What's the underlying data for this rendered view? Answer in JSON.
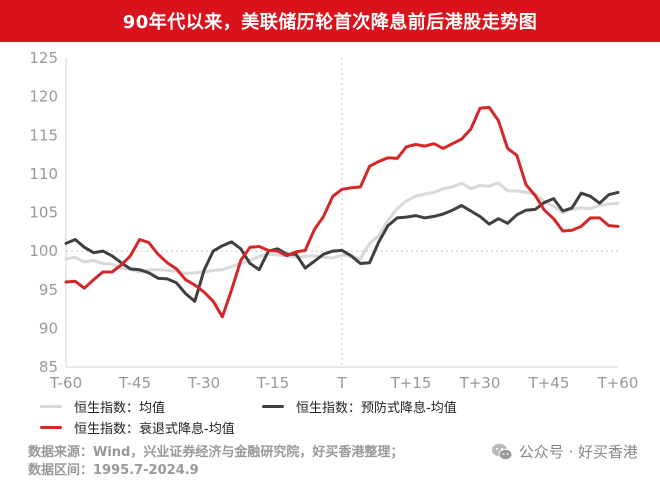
{
  "title": "90年代以来，美联储历轮首次降息前后港股走势图",
  "colors": {
    "light": "#d9d9d9",
    "dark": "#404040",
    "red": "#d62728",
    "accent": "#d9121b"
  },
  "legend": {
    "light_label": "恒生指数：均值",
    "dark_label": "恒生指数：预防式降息-均值",
    "red_label": "恒生指数：衰退式降息-均值"
  },
  "source": {
    "line1": "数据来源：Wind，兴业证券经济与金融研究院，好买香港整理；",
    "line2": "数据区间：1995.7-2024.9"
  },
  "brand": {
    "text": "公众号 · 好买香港",
    "icon": "wechat-icon"
  },
  "chart_data": {
    "type": "line",
    "xlabel": "",
    "ylabel": "",
    "xlim": [
      -60,
      60
    ],
    "ylim": [
      85,
      125
    ],
    "yticks": [
      85,
      90,
      95,
      100,
      105,
      110,
      115,
      120,
      125
    ],
    "xticks": [
      -60,
      -45,
      -30,
      -15,
      0,
      15,
      30,
      45,
      60
    ],
    "xtick_labels": [
      "T-60",
      "T-45",
      "T-30",
      "T-15",
      "T",
      "T+15",
      "T+30",
      "T+45",
      "T+60"
    ],
    "grid": false,
    "reference_lines": {
      "y": 100,
      "x": 0
    },
    "series": [
      {
        "name": "恒生指数：均值",
        "color": "light",
        "x": [
          -60,
          -58,
          -56,
          -54,
          -52,
          -50,
          -48,
          -46,
          -44,
          -42,
          -40,
          -38,
          -36,
          -34,
          -32,
          -30,
          -28,
          -26,
          -24,
          -22,
          -20,
          -18,
          -16,
          -14,
          -12,
          -10,
          -8,
          -6,
          -4,
          -2,
          0,
          2,
          4,
          6,
          8,
          10,
          12,
          14,
          16,
          18,
          20,
          22,
          24,
          26,
          28,
          30,
          32,
          34,
          36,
          38,
          40,
          42,
          44,
          46,
          48,
          50,
          52,
          54,
          56,
          58,
          60
        ],
        "y": [
          99,
          99.2,
          98.6,
          98.8,
          98.4,
          98.3,
          97.8,
          97.6,
          97.3,
          97.6,
          97.6,
          97.5,
          97.4,
          97.1,
          97.2,
          97.3,
          97.5,
          97.6,
          98,
          98.4,
          98.8,
          99.3,
          99.6,
          99.5,
          99.4,
          99.2,
          99.3,
          99.4,
          99.2,
          99.1,
          99.5,
          99.3,
          99,
          101,
          102,
          104,
          105.5,
          106.5,
          107.1,
          107.4,
          107.6,
          108.1,
          108.3,
          108.8,
          108.1,
          108.5,
          108.4,
          108.8,
          107.8,
          107.8,
          107.6,
          107.4,
          106.4,
          105.8,
          105,
          105.4,
          105.6,
          105.5,
          105.9,
          106.1,
          106.2
        ]
      },
      {
        "name": "恒生指数：预防式降息-均值",
        "color": "dark",
        "x": [
          -60,
          -58,
          -56,
          -54,
          -52,
          -50,
          -48,
          -46,
          -44,
          -42,
          -40,
          -38,
          -36,
          -34,
          -32,
          -30,
          -28,
          -26,
          -24,
          -22,
          -20,
          -18,
          -16,
          -14,
          -12,
          -10,
          -8,
          -6,
          -4,
          -2,
          0,
          2,
          4,
          6,
          8,
          10,
          12,
          14,
          16,
          18,
          20,
          22,
          24,
          26,
          28,
          30,
          32,
          34,
          36,
          38,
          40,
          42,
          44,
          46,
          48,
          50,
          52,
          54,
          56,
          58,
          60
        ],
        "y": [
          101,
          101.5,
          100.5,
          99.8,
          100,
          99.4,
          98.5,
          97.7,
          97.6,
          97.2,
          96.5,
          96.4,
          95.9,
          94.5,
          93.5,
          97.5,
          100,
          100.7,
          101.2,
          100.3,
          98.4,
          97.6,
          100,
          100.3,
          99.6,
          99.6,
          97.8,
          98.7,
          99.6,
          100,
          100.1,
          99.4,
          98.4,
          98.5,
          101.2,
          103.3,
          104.3,
          104.4,
          104.6,
          104.3,
          104.5,
          104.8,
          105.3,
          105.9,
          105.2,
          104.5,
          103.5,
          104.2,
          103.6,
          104.7,
          105.3,
          105.4,
          106.3,
          106.8,
          105.2,
          105.6,
          107.5,
          107.1,
          106.2,
          107.3,
          107.6
        ]
      },
      {
        "name": "恒生指数：衰退式降息-均值",
        "color": "red",
        "x": [
          -60,
          -58,
          -56,
          -54,
          -52,
          -50,
          -48,
          -46,
          -44,
          -42,
          -40,
          -38,
          -36,
          -34,
          -32,
          -30,
          -28,
          -26,
          -24,
          -22,
          -20,
          -18,
          -16,
          -14,
          -12,
          -10,
          -8,
          -6,
          -4,
          -2,
          0,
          2,
          4,
          6,
          8,
          10,
          12,
          14,
          16,
          18,
          20,
          22,
          24,
          26,
          28,
          30,
          32,
          34,
          36,
          38,
          40,
          42,
          44,
          46,
          48,
          50,
          52,
          54,
          56,
          58,
          60
        ],
        "y": [
          96,
          96.1,
          95.2,
          96.3,
          97.3,
          97.3,
          98.2,
          99.4,
          101.5,
          101.1,
          99.6,
          98.5,
          97.7,
          96.3,
          95.6,
          94.7,
          93.5,
          91.5,
          95,
          98.8,
          100.5,
          100.6,
          100.1,
          100,
          99.4,
          99.9,
          100.1,
          102.8,
          104.5,
          107.1,
          108,
          108.2,
          108.3,
          111,
          111.6,
          112.1,
          112,
          113.5,
          113.8,
          113.6,
          113.9,
          113.3,
          113.9,
          114.5,
          115.8,
          118.5,
          118.6,
          116.9,
          113.3,
          112.4,
          108.6,
          107.2,
          105.3,
          104.2,
          102.6,
          102.7,
          103.2,
          104.3,
          104.3,
          103.3,
          103.2
        ]
      }
    ]
  }
}
